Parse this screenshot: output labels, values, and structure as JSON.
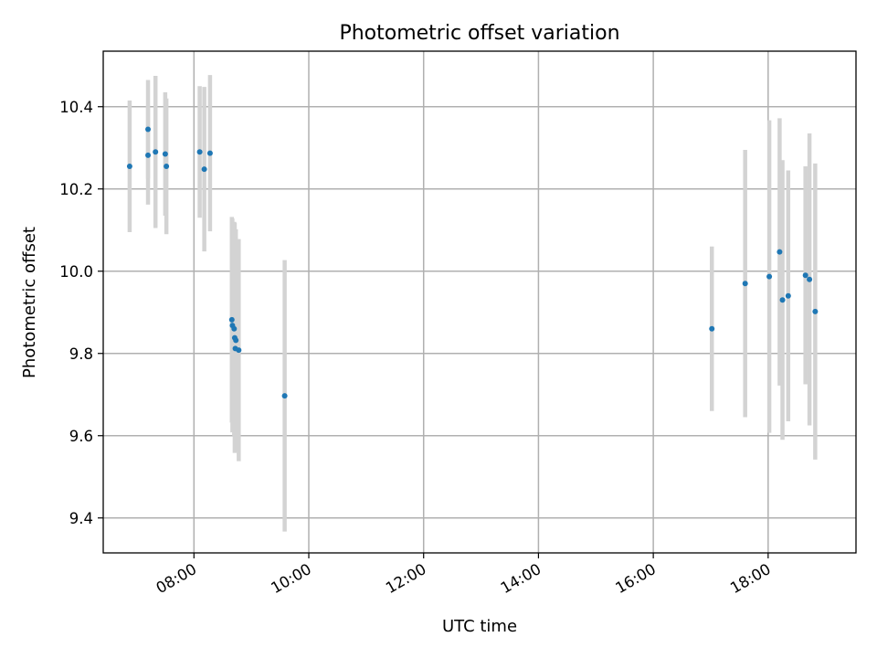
{
  "chart_data": {
    "type": "scatter",
    "title": "Photometric offset variation",
    "xlabel": "UTC time",
    "ylabel": "Photometric offset",
    "x_unit": "UTC hour of day",
    "xlim": [
      6.42,
      19.53
    ],
    "ylim": [
      9.315,
      10.535
    ],
    "x_ticks": [
      {
        "value": 8,
        "label": "08:00"
      },
      {
        "value": 10,
        "label": "10:00"
      },
      {
        "value": 12,
        "label": "12:00"
      },
      {
        "value": 14,
        "label": "14:00"
      },
      {
        "value": 16,
        "label": "16:00"
      },
      {
        "value": 18,
        "label": "18:00"
      }
    ],
    "y_ticks": [
      {
        "value": 9.4,
        "label": "9.4"
      },
      {
        "value": 9.6,
        "label": "9.6"
      },
      {
        "value": 9.8,
        "label": "9.8"
      },
      {
        "value": 10.0,
        "label": "10.0"
      },
      {
        "value": 10.2,
        "label": "10.2"
      },
      {
        "value": 10.4,
        "label": "10.4"
      }
    ],
    "grid": true,
    "colors": {
      "points": "#1f77b4",
      "error_bars": "#d3d3d3",
      "grid": "#b0b0b0",
      "axes": "#000000"
    },
    "series": [
      {
        "points": [
          {
            "x": 6.88,
            "y": 10.255,
            "err": 0.16
          },
          {
            "x": 7.2,
            "y": 10.345,
            "err": 0.12
          },
          {
            "x": 7.2,
            "y": 10.282,
            "err": 0.12
          },
          {
            "x": 7.33,
            "y": 10.29,
            "err": 0.185
          },
          {
            "x": 7.5,
            "y": 10.285,
            "err": 0.15
          },
          {
            "x": 7.52,
            "y": 10.255,
            "err": 0.165
          },
          {
            "x": 8.1,
            "y": 10.29,
            "err": 0.16
          },
          {
            "x": 8.18,
            "y": 10.248,
            "err": 0.2
          },
          {
            "x": 8.28,
            "y": 10.287,
            "err": 0.19
          },
          {
            "x": 8.66,
            "y": 9.882,
            "err": 0.25
          },
          {
            "x": 8.67,
            "y": 9.868,
            "err": 0.26
          },
          {
            "x": 8.7,
            "y": 9.86,
            "err": 0.26
          },
          {
            "x": 8.71,
            "y": 9.838,
            "err": 0.28
          },
          {
            "x": 8.73,
            "y": 9.832,
            "err": 0.27
          },
          {
            "x": 8.72,
            "y": 9.812,
            "err": 0.25
          },
          {
            "x": 8.78,
            "y": 9.808,
            "err": 0.27
          },
          {
            "x": 9.58,
            "y": 9.697,
            "err": 0.33
          },
          {
            "x": 17.02,
            "y": 9.86,
            "err": 0.2
          },
          {
            "x": 17.6,
            "y": 9.97,
            "err": 0.325
          },
          {
            "x": 18.02,
            "y": 9.987,
            "err": 0.38
          },
          {
            "x": 18.2,
            "y": 10.047,
            "err": 0.325
          },
          {
            "x": 18.25,
            "y": 9.93,
            "err": 0.34
          },
          {
            "x": 18.35,
            "y": 9.94,
            "err": 0.305
          },
          {
            "x": 18.65,
            "y": 9.99,
            "err": 0.265
          },
          {
            "x": 18.72,
            "y": 9.98,
            "err": 0.355
          },
          {
            "x": 18.82,
            "y": 9.902,
            "err": 0.36
          }
        ]
      }
    ]
  }
}
